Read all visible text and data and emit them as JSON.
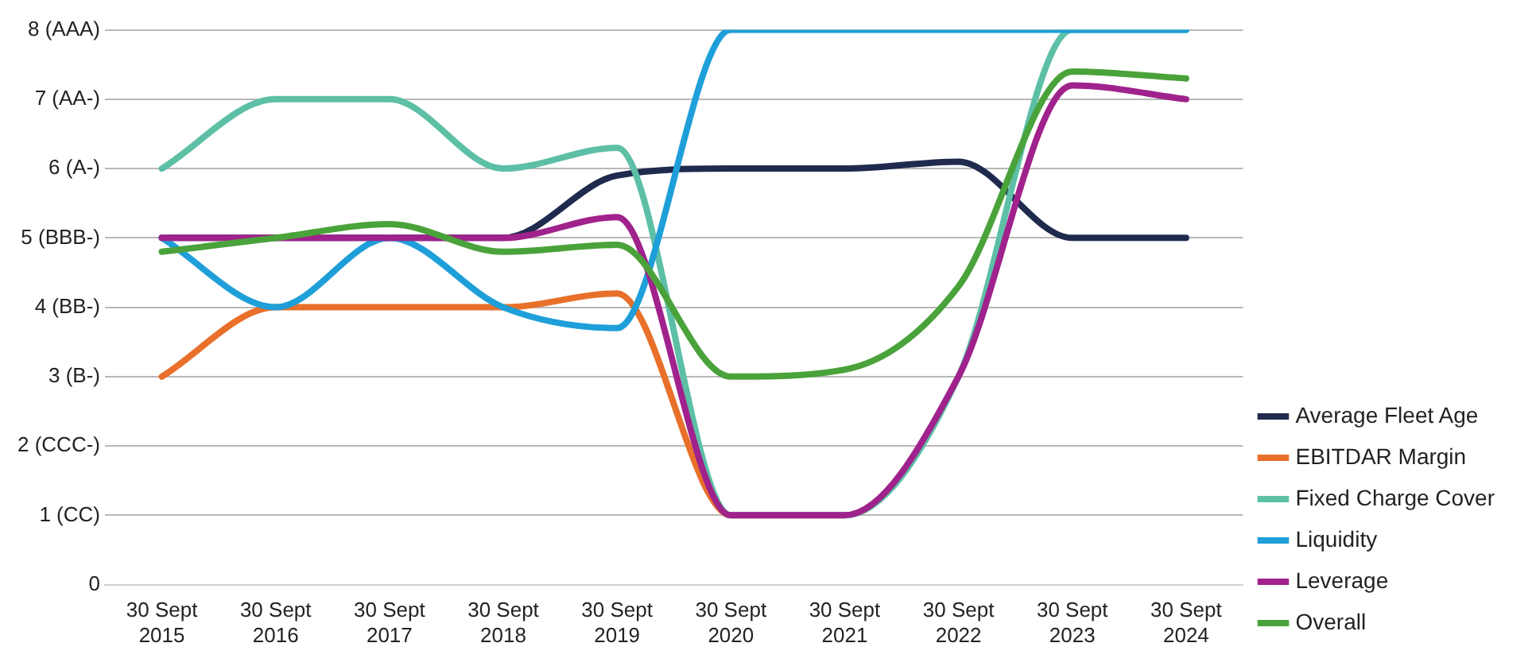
{
  "chart_data": {
    "type": "line",
    "categories": [
      "30 Sept 2015",
      "30 Sept 2016",
      "30 Sept 2017",
      "30 Sept 2018",
      "30 Sept 2019",
      "30 Sept 2020",
      "30 Sept 2021",
      "30 Sept 2022",
      "30 Sept 2023",
      "30 Sept 2024"
    ],
    "series": [
      {
        "name": "Average Fleet Age",
        "color": "#1f2a4e",
        "values": [
          5,
          5,
          5,
          5,
          5.9,
          6,
          6,
          6.1,
          5,
          5
        ]
      },
      {
        "name": "EBITDAR Margin",
        "color": "#e8702a",
        "values": [
          3,
          4,
          4,
          4,
          4.2,
          1,
          1,
          null,
          null,
          null
        ]
      },
      {
        "name": "Fixed Charge Cover",
        "color": "#5dbfa6",
        "values": [
          6,
          7,
          7,
          6,
          6.3,
          1,
          1,
          3,
          8,
          8
        ]
      },
      {
        "name": "Liquidity",
        "color": "#1f9fd9",
        "values": [
          5,
          4,
          5,
          4,
          3.7,
          8,
          8,
          8,
          8,
          8
        ]
      },
      {
        "name": "Leverage",
        "color": "#a0228c",
        "values": [
          5,
          5,
          5,
          5,
          5.3,
          1,
          1,
          3,
          7.2,
          7
        ]
      },
      {
        "name": "Overall",
        "color": "#4aa23a",
        "values": [
          4.8,
          5,
          5.2,
          4.8,
          4.9,
          3,
          3.1,
          4.3,
          7.4,
          7.3
        ]
      }
    ],
    "ylim": [
      0,
      8
    ],
    "yticks": [
      0,
      {
        "value": 1,
        "label": "1 (CC)"
      },
      {
        "value": 2,
        "label": "2 (CCC-)"
      },
      {
        "value": 3,
        "label": "3 (B-)"
      },
      {
        "value": 4,
        "label": "4 (BB-)"
      },
      {
        "value": 5,
        "label": "5 (BBB-)"
      },
      {
        "value": 6,
        "label": "6 (A-)"
      },
      {
        "value": 7,
        "label": "7 (AA-)"
      },
      {
        "value": 8,
        "label": "8 (AAA)"
      }
    ],
    "grid": "y",
    "legend": "right",
    "marker": "none",
    "line_style": "solid"
  }
}
